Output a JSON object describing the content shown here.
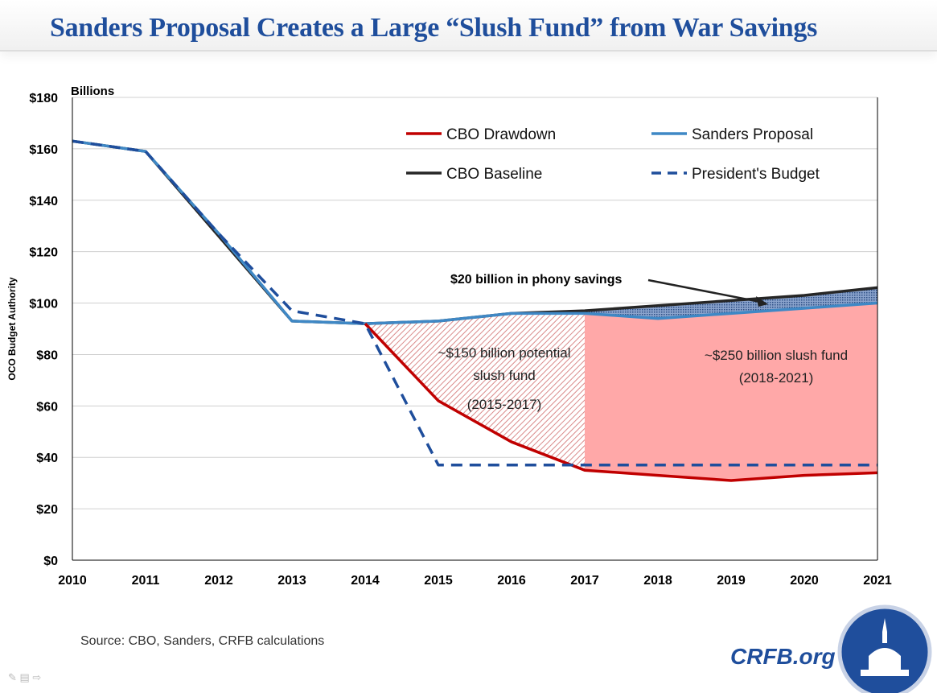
{
  "header": {
    "title": "Sanders Proposal Creates a Large “Slush Fund” from War Savings"
  },
  "footer": {
    "source": "Source: CBO, Sanders, CRFB calculations",
    "brand": "CRFB.org",
    "logo_icon": "capitol-dome-seal-icon"
  },
  "chart_data": {
    "type": "line",
    "title": "",
    "units_label": "Billions",
    "ylabel": "OCO Budget Authority",
    "xlabel": "",
    "ylim": [
      0,
      180
    ],
    "yticks": [
      0,
      20,
      40,
      60,
      80,
      100,
      120,
      140,
      160,
      180
    ],
    "ytick_labels": [
      "$0",
      "$20",
      "$40",
      "$60",
      "$80",
      "$100",
      "$120",
      "$140",
      "$160",
      "$180"
    ],
    "x": [
      2010,
      2011,
      2012,
      2013,
      2014,
      2015,
      2016,
      2017,
      2018,
      2019,
      2020,
      2021
    ],
    "grid": "horizontal",
    "legend_placement": "top-right",
    "series": [
      {
        "name": "CBO Drawdown",
        "color": "#c00000",
        "dash": false,
        "values": [
          null,
          null,
          null,
          null,
          92,
          62,
          46,
          35,
          33,
          31,
          33,
          34
        ]
      },
      {
        "name": "Sanders Proposal",
        "color": "#3f88c5",
        "dash": false,
        "values": [
          163,
          159,
          127,
          93,
          92,
          93,
          96,
          96,
          94,
          96,
          98,
          100
        ]
      },
      {
        "name": "CBO Baseline",
        "color": "#262626",
        "dash": false,
        "values": [
          163,
          159,
          126,
          93,
          92,
          93,
          96,
          97,
          99,
          101,
          103,
          106
        ]
      },
      {
        "name": "President's Budget",
        "color": "#1f4e9c",
        "dash": true,
        "values": [
          163,
          159,
          127,
          97,
          92,
          37,
          37,
          37,
          37,
          37,
          37,
          37
        ]
      }
    ],
    "annotations": [
      {
        "text": "$20 billion in phony  savings"
      },
      {
        "lines": [
          "~$150 billion potential",
          "slush fund",
          "(2015-2017)"
        ]
      },
      {
        "lines": [
          "~$250 billion slush fund",
          "(2018-2021)"
        ]
      }
    ],
    "colors": {
      "hatch_fill": "#e8a0a0",
      "solid_fill": "#ffa8a8",
      "savings_fill": "#5a7bb0"
    }
  }
}
